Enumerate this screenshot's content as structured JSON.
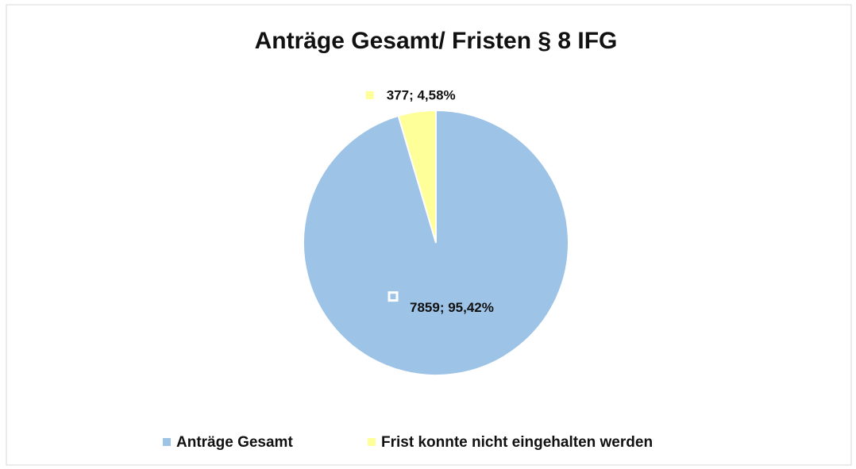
{
  "chart_data": {
    "type": "pie",
    "title": "Anträge Gesamt/ Fristen § 8 IFG",
    "categories": [
      "Anträge Gesamt",
      "Frist konnte nicht eingehalten werden"
    ],
    "values": [
      7859,
      377
    ],
    "value_labels": [
      "7859; 95,42%",
      "377; 4,58%"
    ],
    "colors": [
      "#9dc3e6",
      "#ffff99"
    ],
    "legend": "bottom"
  }
}
